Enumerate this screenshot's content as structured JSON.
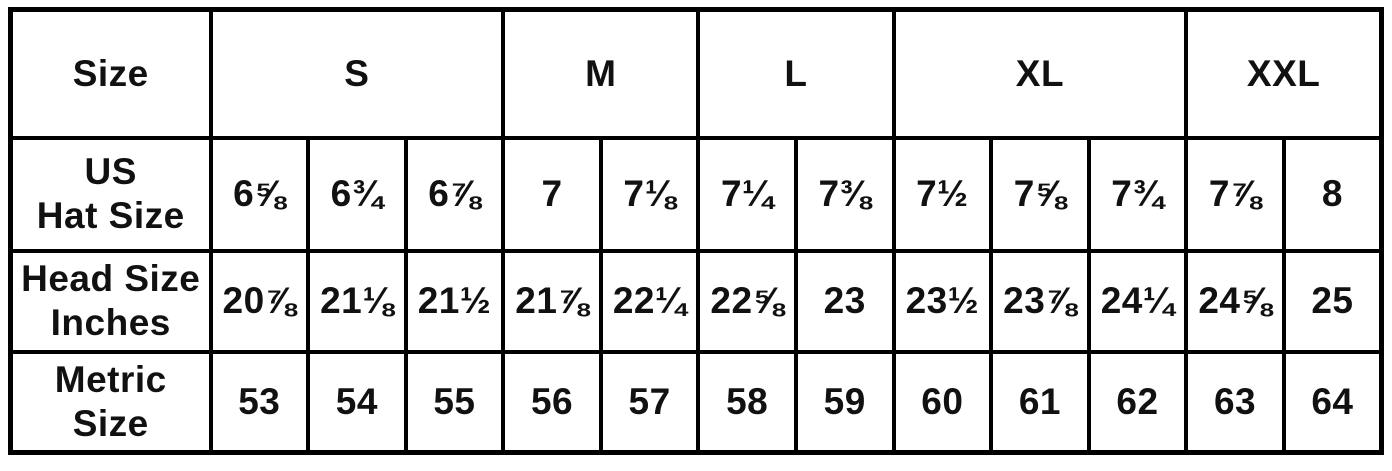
{
  "colors": {
    "border": "#000000",
    "background": "#ffffff",
    "text": "#111111"
  },
  "chart_data": {
    "type": "table",
    "corner_label": "Size",
    "column_groups": [
      {
        "label": "S",
        "span": 3
      },
      {
        "label": "M",
        "span": 2
      },
      {
        "label": "L",
        "span": 2
      },
      {
        "label": "XL",
        "span": 3
      },
      {
        "label": "XXL",
        "span": 2
      }
    ],
    "rows": [
      {
        "label": "US Hat Size",
        "label_lines": [
          "US",
          "Hat Size"
        ],
        "values": [
          "6⅝",
          "6¾",
          "6⅞",
          "7",
          "7⅛",
          "7¼",
          "7⅜",
          "7½",
          "7⅝",
          "7¾",
          "7⅞",
          "8"
        ]
      },
      {
        "label": "Head Size Inches",
        "label_lines": [
          "Head Size",
          "Inches"
        ],
        "values": [
          "20⅞",
          "21⅛",
          "21½",
          "21⅞",
          "22¼",
          "22⅝",
          "23",
          "23½",
          "23⅞",
          "24¼",
          "24⅝",
          "25"
        ]
      },
      {
        "label": "Metric Size",
        "label_lines": [
          "Metric",
          "Size"
        ],
        "values": [
          "53",
          "54",
          "55",
          "56",
          "57",
          "58",
          "59",
          "60",
          "61",
          "62",
          "63",
          "64"
        ]
      }
    ]
  }
}
